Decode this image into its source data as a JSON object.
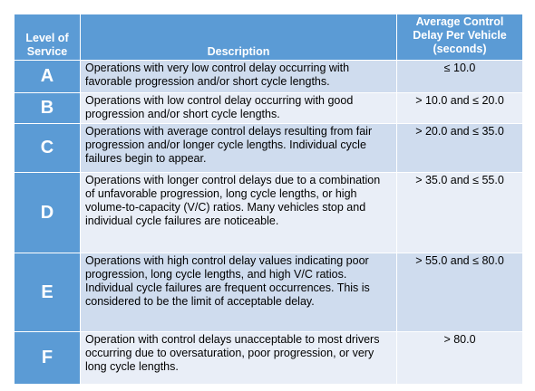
{
  "table": {
    "header": [
      "Level of Service",
      "Description",
      "Average Control Delay Per Vehicle (seconds)"
    ],
    "rows": [
      [
        "A",
        "Operations with very low control delay occurring with favorable progression and/or short cycle lengths.",
        "≤ 10.0"
      ],
      [
        "B",
        "Operations with low control delay occurring with good progression and/or short cycle lengths.",
        "> 10.0 and ≤ 20.0"
      ],
      [
        "C",
        "Operations with average control delays resulting from fair progression and/or longer cycle lengths. Individual cycle failures begin to appear.",
        "> 20.0 and ≤ 35.0"
      ],
      [
        "D",
        "Operations with longer control delays due to a combination of unfavorable progression, long cycle lengths, or high volume-to-capacity (V/C) ratios. Many vehicles stop and individual cycle failures are noticeable.",
        "> 35.0 and ≤ 55.0"
      ],
      [
        "E",
        "Operations with high control delay values indicating poor progression, long cycle lengths, and high V/C ratios. Individual cycle failures are frequent occurrences. This is considered to be the limit of acceptable delay.",
        "> 55.0 and ≤ 80.0"
      ],
      [
        "F",
        "Operation with control delays unacceptable to most drivers occurring due to oversaturation, poor progression, or very long cycle lengths.",
        "> 80.0"
      ]
    ]
  }
}
